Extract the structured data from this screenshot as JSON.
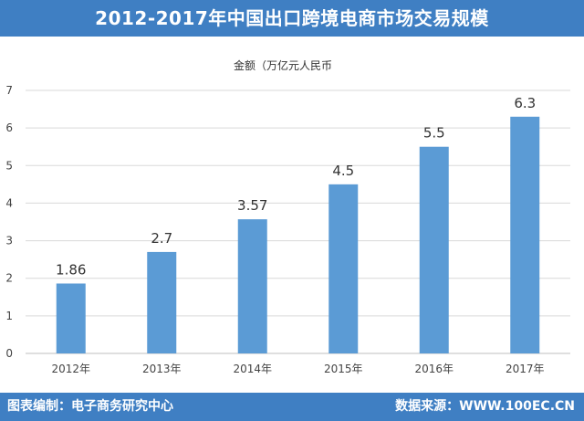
{
  "title": "2012-2017年中国出口跨境电商市场交易规模",
  "footer": {
    "left": "图表编制：电子商务研究中心",
    "right": "数据来源：WWW.100EC.CN"
  },
  "colors": {
    "banner": "#3f7fc3",
    "bar": "#5b9bd5",
    "grid": "#d9d9d9"
  },
  "chart_data": {
    "type": "bar",
    "ylabel": "金额（万亿元人民币",
    "categories": [
      "2012年",
      "2013年",
      "2014年",
      "2015年",
      "2016年",
      "2017年"
    ],
    "values": [
      1.86,
      2.7,
      3.57,
      4.5,
      5.5,
      6.3
    ],
    "data_labels": [
      "1.86",
      "2.7",
      "3.57",
      "4.5",
      "5.5",
      "6.3"
    ],
    "ylim": [
      0,
      7
    ],
    "yticks": [
      "0",
      "1",
      "2",
      "3",
      "4",
      "5",
      "6",
      "7"
    ],
    "grid": true,
    "legend": "none"
  }
}
